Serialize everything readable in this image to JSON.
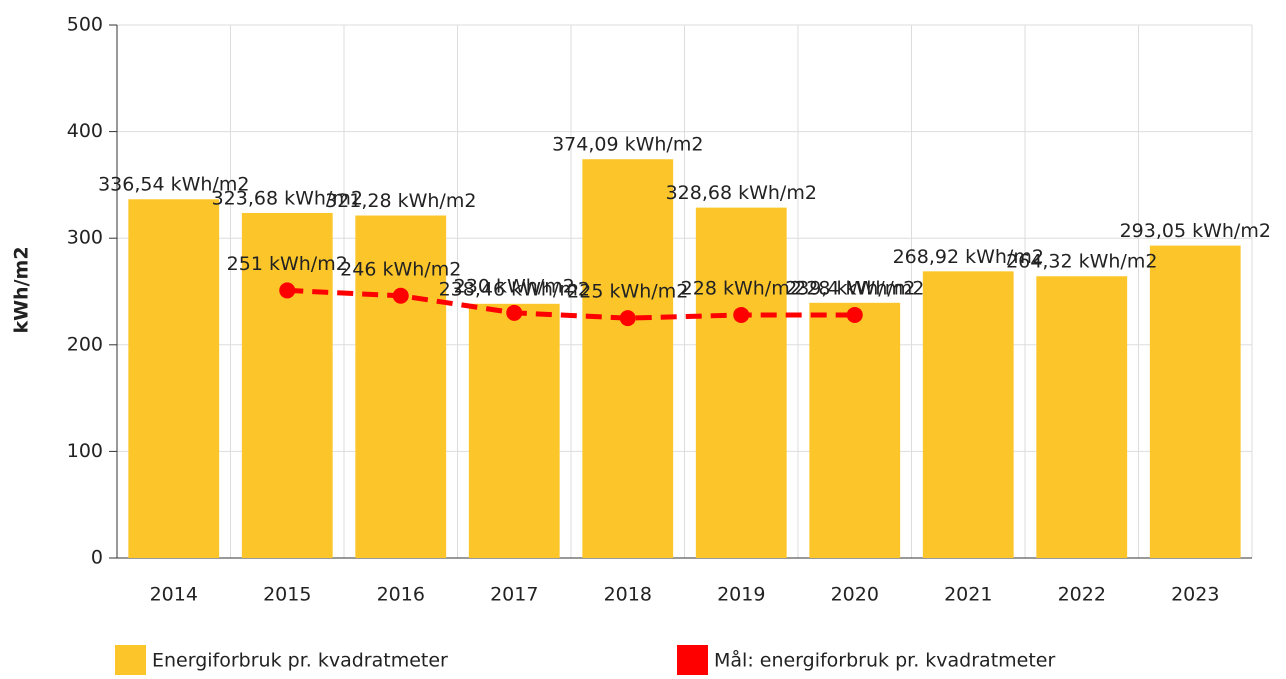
{
  "chart_data": {
    "type": "bar",
    "ylabel": "kWh/m2",
    "categories": [
      "2014",
      "2015",
      "2016",
      "2017",
      "2018",
      "2019",
      "2020",
      "2021",
      "2022",
      "2023"
    ],
    "series": [
      {
        "name": "Energiforbruk pr. kvadratmeter",
        "type": "bar",
        "color": "#fcc62a",
        "values": [
          336.54,
          323.68,
          321.28,
          238.46,
          374.09,
          328.68,
          239.4,
          268.92,
          264.32,
          293.05
        ],
        "value_labels": [
          "336,54 kWh/m2",
          "323,68 kWh/m2",
          "321,28 kWh/m2",
          "238,46 kWh/m2",
          "374,09 kWh/m2",
          "328,68 kWh/m2",
          "239,4 kWh/m2",
          "268,92 kWh/m2",
          "264,32 kWh/m2",
          "293,05 kWh/m2"
        ]
      },
      {
        "name": "Mål: energiforbruk pr. kvadratmeter",
        "type": "line",
        "color": "#ff0000",
        "values": [
          null,
          251,
          246,
          230,
          225,
          228,
          228,
          null,
          null,
          null
        ],
        "value_labels": [
          null,
          "251 kWh/m2",
          "246 kWh/m2",
          "230 kWh/m2",
          "225 kWh/m2",
          "228 kWh/m2",
          "228 kWh/m2",
          null,
          null,
          null
        ]
      }
    ],
    "ylim": [
      0,
      500
    ],
    "yticks": [
      0,
      100,
      200,
      300,
      400,
      500
    ],
    "grid": true
  }
}
